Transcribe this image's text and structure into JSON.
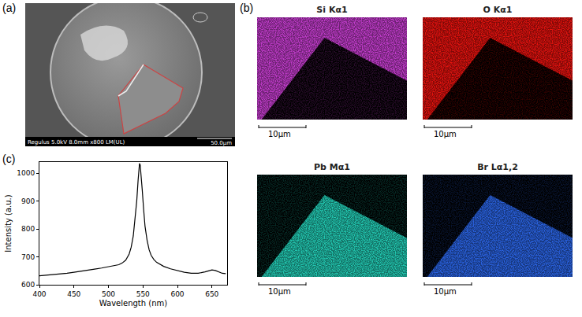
{
  "panel_labels": [
    "(a)",
    "(b)",
    "(c)"
  ],
  "sem_image": {
    "info": "Regulus 5.0kV 8.0mm x800 LM(UL)",
    "scale_bar": "50.0μm"
  },
  "eds_maps": [
    {
      "title": "Si Kα1",
      "color": "#c23ccc"
    },
    {
      "title": "O Kα1",
      "color": "#e3120f"
    },
    {
      "title": "Pb Mα1",
      "color": "#22c9b2"
    },
    {
      "title": "Br Lα1,2",
      "color": "#2a62e0"
    }
  ],
  "eds_scale_bar": "10μm",
  "chart_data": {
    "type": "line",
    "color": "#000000",
    "x_label": "Wavelength (nm)",
    "y_label": "Intensity (a.u.)",
    "x": [
      400,
      410,
      420,
      430,
      440,
      450,
      460,
      470,
      480,
      490,
      500,
      510,
      515,
      520,
      525,
      530,
      533,
      536,
      539,
      541,
      543,
      544,
      545,
      546,
      547,
      549,
      551,
      553,
      556,
      559,
      562,
      566,
      570,
      575,
      580,
      590,
      600,
      610,
      620,
      630,
      640,
      645,
      650,
      655,
      660,
      665,
      670
    ],
    "values": [
      632,
      634,
      636,
      638,
      641,
      645,
      648,
      652,
      656,
      660,
      664,
      668,
      672,
      678,
      688,
      710,
      735,
      775,
      840,
      900,
      975,
      1010,
      1035,
      1030,
      1005,
      940,
      870,
      810,
      760,
      725,
      705,
      690,
      680,
      672,
      666,
      657,
      650,
      645,
      641,
      641,
      646,
      650,
      653,
      651,
      645,
      641,
      640
    ],
    "xlim": [
      400,
      672
    ],
    "ylim": [
      600,
      1040
    ],
    "xticks": [
      400,
      450,
      500,
      550,
      600,
      650
    ],
    "yticks": [
      600,
      700,
      800,
      900,
      1000
    ]
  }
}
